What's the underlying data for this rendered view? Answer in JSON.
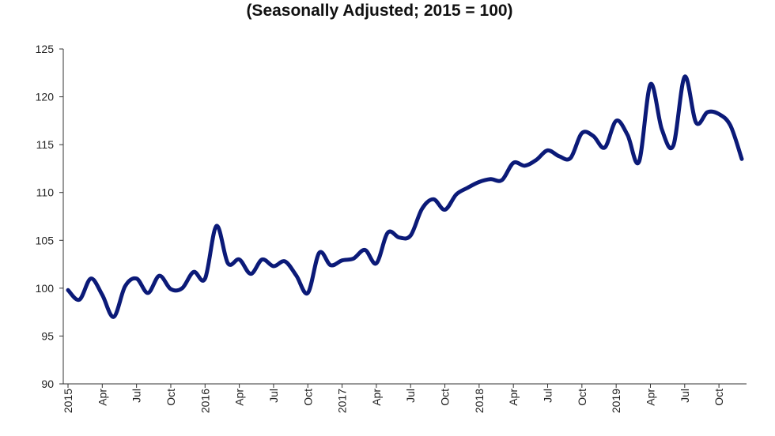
{
  "chart_data": {
    "type": "line",
    "title": "(Seasonally Adjusted; 2015 = 100)",
    "xlabel": "",
    "ylabel": "",
    "ylim": [
      90,
      125
    ],
    "yticks": [
      90,
      95,
      100,
      105,
      110,
      115,
      120,
      125
    ],
    "xtick_labels": [
      "2015",
      "Apr",
      "Jul",
      "Oct",
      "2016",
      "Apr",
      "Jul",
      "Oct",
      "2017",
      "Apr",
      "Jul",
      "Oct",
      "2018",
      "Apr",
      "Jul",
      "Oct",
      "2019",
      "Apr",
      "Jul",
      "Oct"
    ],
    "grid": false,
    "line_color": "#0b1a78",
    "x": [
      "2015-01",
      "2015-02",
      "2015-03",
      "2015-04",
      "2015-05",
      "2015-06",
      "2015-07",
      "2015-08",
      "2015-09",
      "2015-10",
      "2015-11",
      "2015-12",
      "2016-01",
      "2016-02",
      "2016-03",
      "2016-04",
      "2016-05",
      "2016-06",
      "2016-07",
      "2016-08",
      "2016-09",
      "2016-10",
      "2016-11",
      "2016-12",
      "2017-01",
      "2017-02",
      "2017-03",
      "2017-04",
      "2017-05",
      "2017-06",
      "2017-07",
      "2017-08",
      "2017-09",
      "2017-10",
      "2017-11",
      "2017-12",
      "2018-01",
      "2018-02",
      "2018-03",
      "2018-04",
      "2018-05",
      "2018-06",
      "2018-07",
      "2018-08",
      "2018-09",
      "2018-10",
      "2018-11",
      "2018-12",
      "2019-01",
      "2019-02",
      "2019-03",
      "2019-04",
      "2019-05",
      "2019-06",
      "2019-07",
      "2019-08",
      "2019-09",
      "2019-10",
      "2019-11",
      "2019-12"
    ],
    "values": [
      99.8,
      98.8,
      101.0,
      99.3,
      97.0,
      100.2,
      101.0,
      99.5,
      101.3,
      99.9,
      100.0,
      101.7,
      101.0,
      106.5,
      102.6,
      103.0,
      101.5,
      103.0,
      102.3,
      102.8,
      101.3,
      99.5,
      103.7,
      102.4,
      102.9,
      103.1,
      104.0,
      102.6,
      105.8,
      105.3,
      105.5,
      108.3,
      109.3,
      108.2,
      109.8,
      110.5,
      111.1,
      111.4,
      111.3,
      113.1,
      112.8,
      113.4,
      114.4,
      113.8,
      113.6,
      116.2,
      115.9,
      114.7,
      117.5,
      116.0,
      113.2,
      121.3,
      116.6,
      114.9,
      122.1,
      117.3,
      118.4,
      118.2,
      117.0,
      113.5
    ]
  }
}
